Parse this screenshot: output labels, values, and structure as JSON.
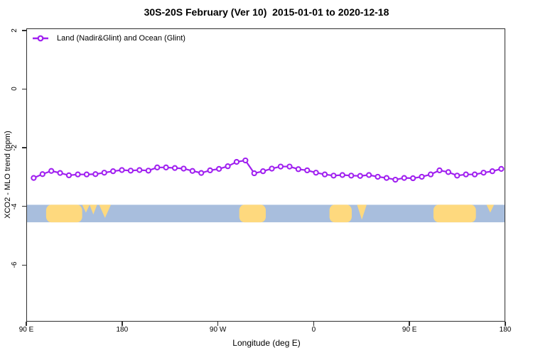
{
  "chart_data": {
    "type": "line",
    "title": "30S-20S February (Ver 10)  2015-01-01 to 2020-12-18",
    "xlabel": "Longitude (deg E)",
    "ylabel": "XCO2 - MLO trend (ppm)",
    "xlim": [
      90,
      540
    ],
    "ylim": [
      -7.93,
      2.07
    ],
    "x_ticks": [
      {
        "deg": 90,
        "label": "90 E"
      },
      {
        "deg": 180,
        "label": "180"
      },
      {
        "deg": 270,
        "label": "90 W"
      },
      {
        "deg": 360,
        "label": "0"
      },
      {
        "deg": 450,
        "label": "90 E"
      },
      {
        "deg": 540,
        "label": "180"
      }
    ],
    "y_ticks": [
      {
        "value": 2,
        "label": "2"
      },
      {
        "value": 0,
        "label": "0"
      },
      {
        "value": -2,
        "label": "-2"
      },
      {
        "value": -4,
        "label": "-4"
      },
      {
        "value": -6,
        "label": "-6"
      }
    ],
    "legend": [
      {
        "label": "Land (Nadir&Glint) and Ocean (Glint)",
        "color": "#a020f0",
        "marker": "open-circle"
      }
    ],
    "series": [
      {
        "name": "Land (Nadir&Glint) and Ocean (Glint)",
        "color": "#a020f0",
        "x_deg": [
          96.3,
          104.6,
          112.9,
          121.2,
          129.5,
          137.9,
          146.2,
          154.5,
          162.8,
          171.1,
          179.4,
          187.7,
          196.0,
          204.4,
          212.7,
          221.0,
          229.3,
          237.6,
          245.9,
          254.2,
          262.5,
          270.9,
          279.2,
          287.5,
          295.8,
          304.1,
          312.4,
          320.7,
          329.0,
          337.4,
          345.7,
          354.0,
          362.3,
          370.6,
          378.9,
          387.2,
          395.5,
          403.9,
          412.2,
          420.5,
          428.8,
          437.1,
          445.4,
          453.7,
          462.0,
          470.4,
          478.7,
          487.0,
          495.3,
          503.6,
          511.9,
          520.2,
          528.5,
          536.9
        ],
        "y_ppm": [
          -3.03,
          -2.9,
          -2.79,
          -2.86,
          -2.94,
          -2.91,
          -2.91,
          -2.9,
          -2.85,
          -2.8,
          -2.76,
          -2.78,
          -2.76,
          -2.78,
          -2.67,
          -2.67,
          -2.69,
          -2.71,
          -2.79,
          -2.86,
          -2.77,
          -2.72,
          -2.63,
          -2.48,
          -2.43,
          -2.87,
          -2.8,
          -2.71,
          -2.64,
          -2.64,
          -2.73,
          -2.77,
          -2.85,
          -2.91,
          -2.95,
          -2.93,
          -2.95,
          -2.96,
          -2.93,
          -2.99,
          -3.03,
          -3.09,
          -3.03,
          -3.04,
          -2.99,
          -2.91,
          -2.77,
          -2.83,
          -2.95,
          -2.91,
          -2.91,
          -2.85,
          -2.8,
          -2.72
        ]
      }
    ],
    "land_ocean_strip": {
      "top_ppm": -3.95,
      "bottom_ppm": -4.55,
      "ocean_color": "#a8bedd",
      "land_color": "#fed97e",
      "land_blobs": [
        {
          "deg": [
            108,
            142
          ],
          "kind": "full-rounded"
        },
        {
          "deg": [
            142,
            149
          ],
          "kind": "top-triangle",
          "depth": 0.45
        },
        {
          "deg": [
            149,
            156
          ],
          "kind": "top-triangle",
          "depth": 0.55
        },
        {
          "deg": [
            158,
            169
          ],
          "kind": "top-triangle",
          "depth": 0.75
        },
        {
          "deg": [
            290,
            315
          ],
          "kind": "full-rounded"
        },
        {
          "deg": [
            375,
            396
          ],
          "kind": "full-rounded"
        },
        {
          "deg": [
            401,
            410
          ],
          "kind": "top-triangle",
          "depth": 0.85
        },
        {
          "deg": [
            473,
            513
          ],
          "kind": "full-rounded"
        },
        {
          "deg": [
            523,
            530
          ],
          "kind": "top-triangle",
          "depth": 0.45
        }
      ]
    }
  }
}
